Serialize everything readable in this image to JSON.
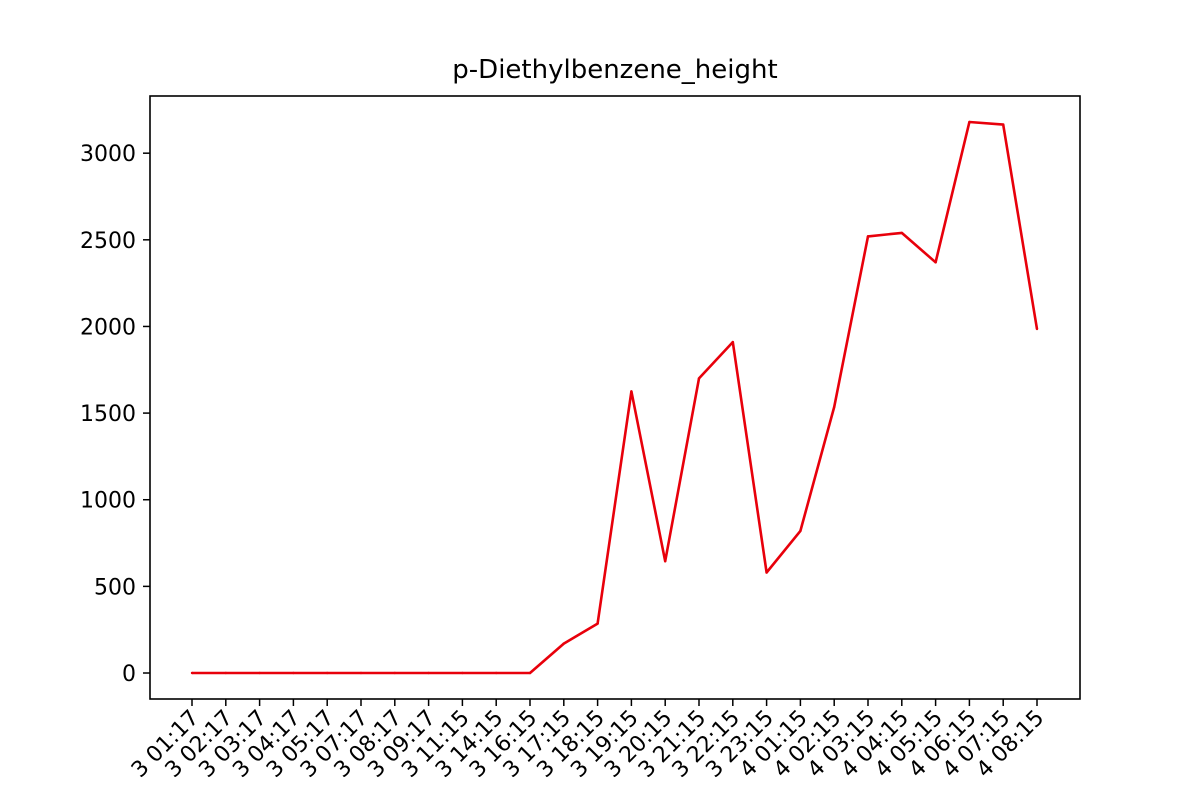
{
  "chart_data": {
    "type": "line",
    "title": "p-Diethylbenzene_height",
    "xlabel": "",
    "ylabel": "",
    "categories": [
      "3 01:17",
      "3 02:17",
      "3 03:17",
      "3 04:17",
      "3 05:17",
      "3 07:17",
      "3 08:17",
      "3 09:17",
      "3 11:15",
      "3 14:15",
      "3 16:15",
      "3 17:15",
      "3 18:15",
      "3 19:15",
      "3 20:15",
      "3 21:15",
      "3 22:15",
      "3 23:15",
      "4 01:15",
      "4 02:15",
      "4 03:15",
      "4 04:15",
      "4 05:15",
      "4 06:15",
      "4 07:15",
      "4 08:15"
    ],
    "series": [
      {
        "color": "#e8000b",
        "values": [
          0,
          0,
          0,
          0,
          0,
          0,
          0,
          0,
          0,
          0,
          0,
          170,
          285,
          1625,
          645,
          1700,
          1910,
          580,
          820,
          1535,
          2520,
          2540,
          2370,
          3180,
          3165,
          1985
        ]
      }
    ],
    "yticks": [
      "0",
      "500",
      "1000",
      "1500",
      "2000",
      "2500",
      "3000"
    ],
    "ylim": [
      -150,
      3330
    ],
    "grid": false,
    "legend": "none"
  }
}
